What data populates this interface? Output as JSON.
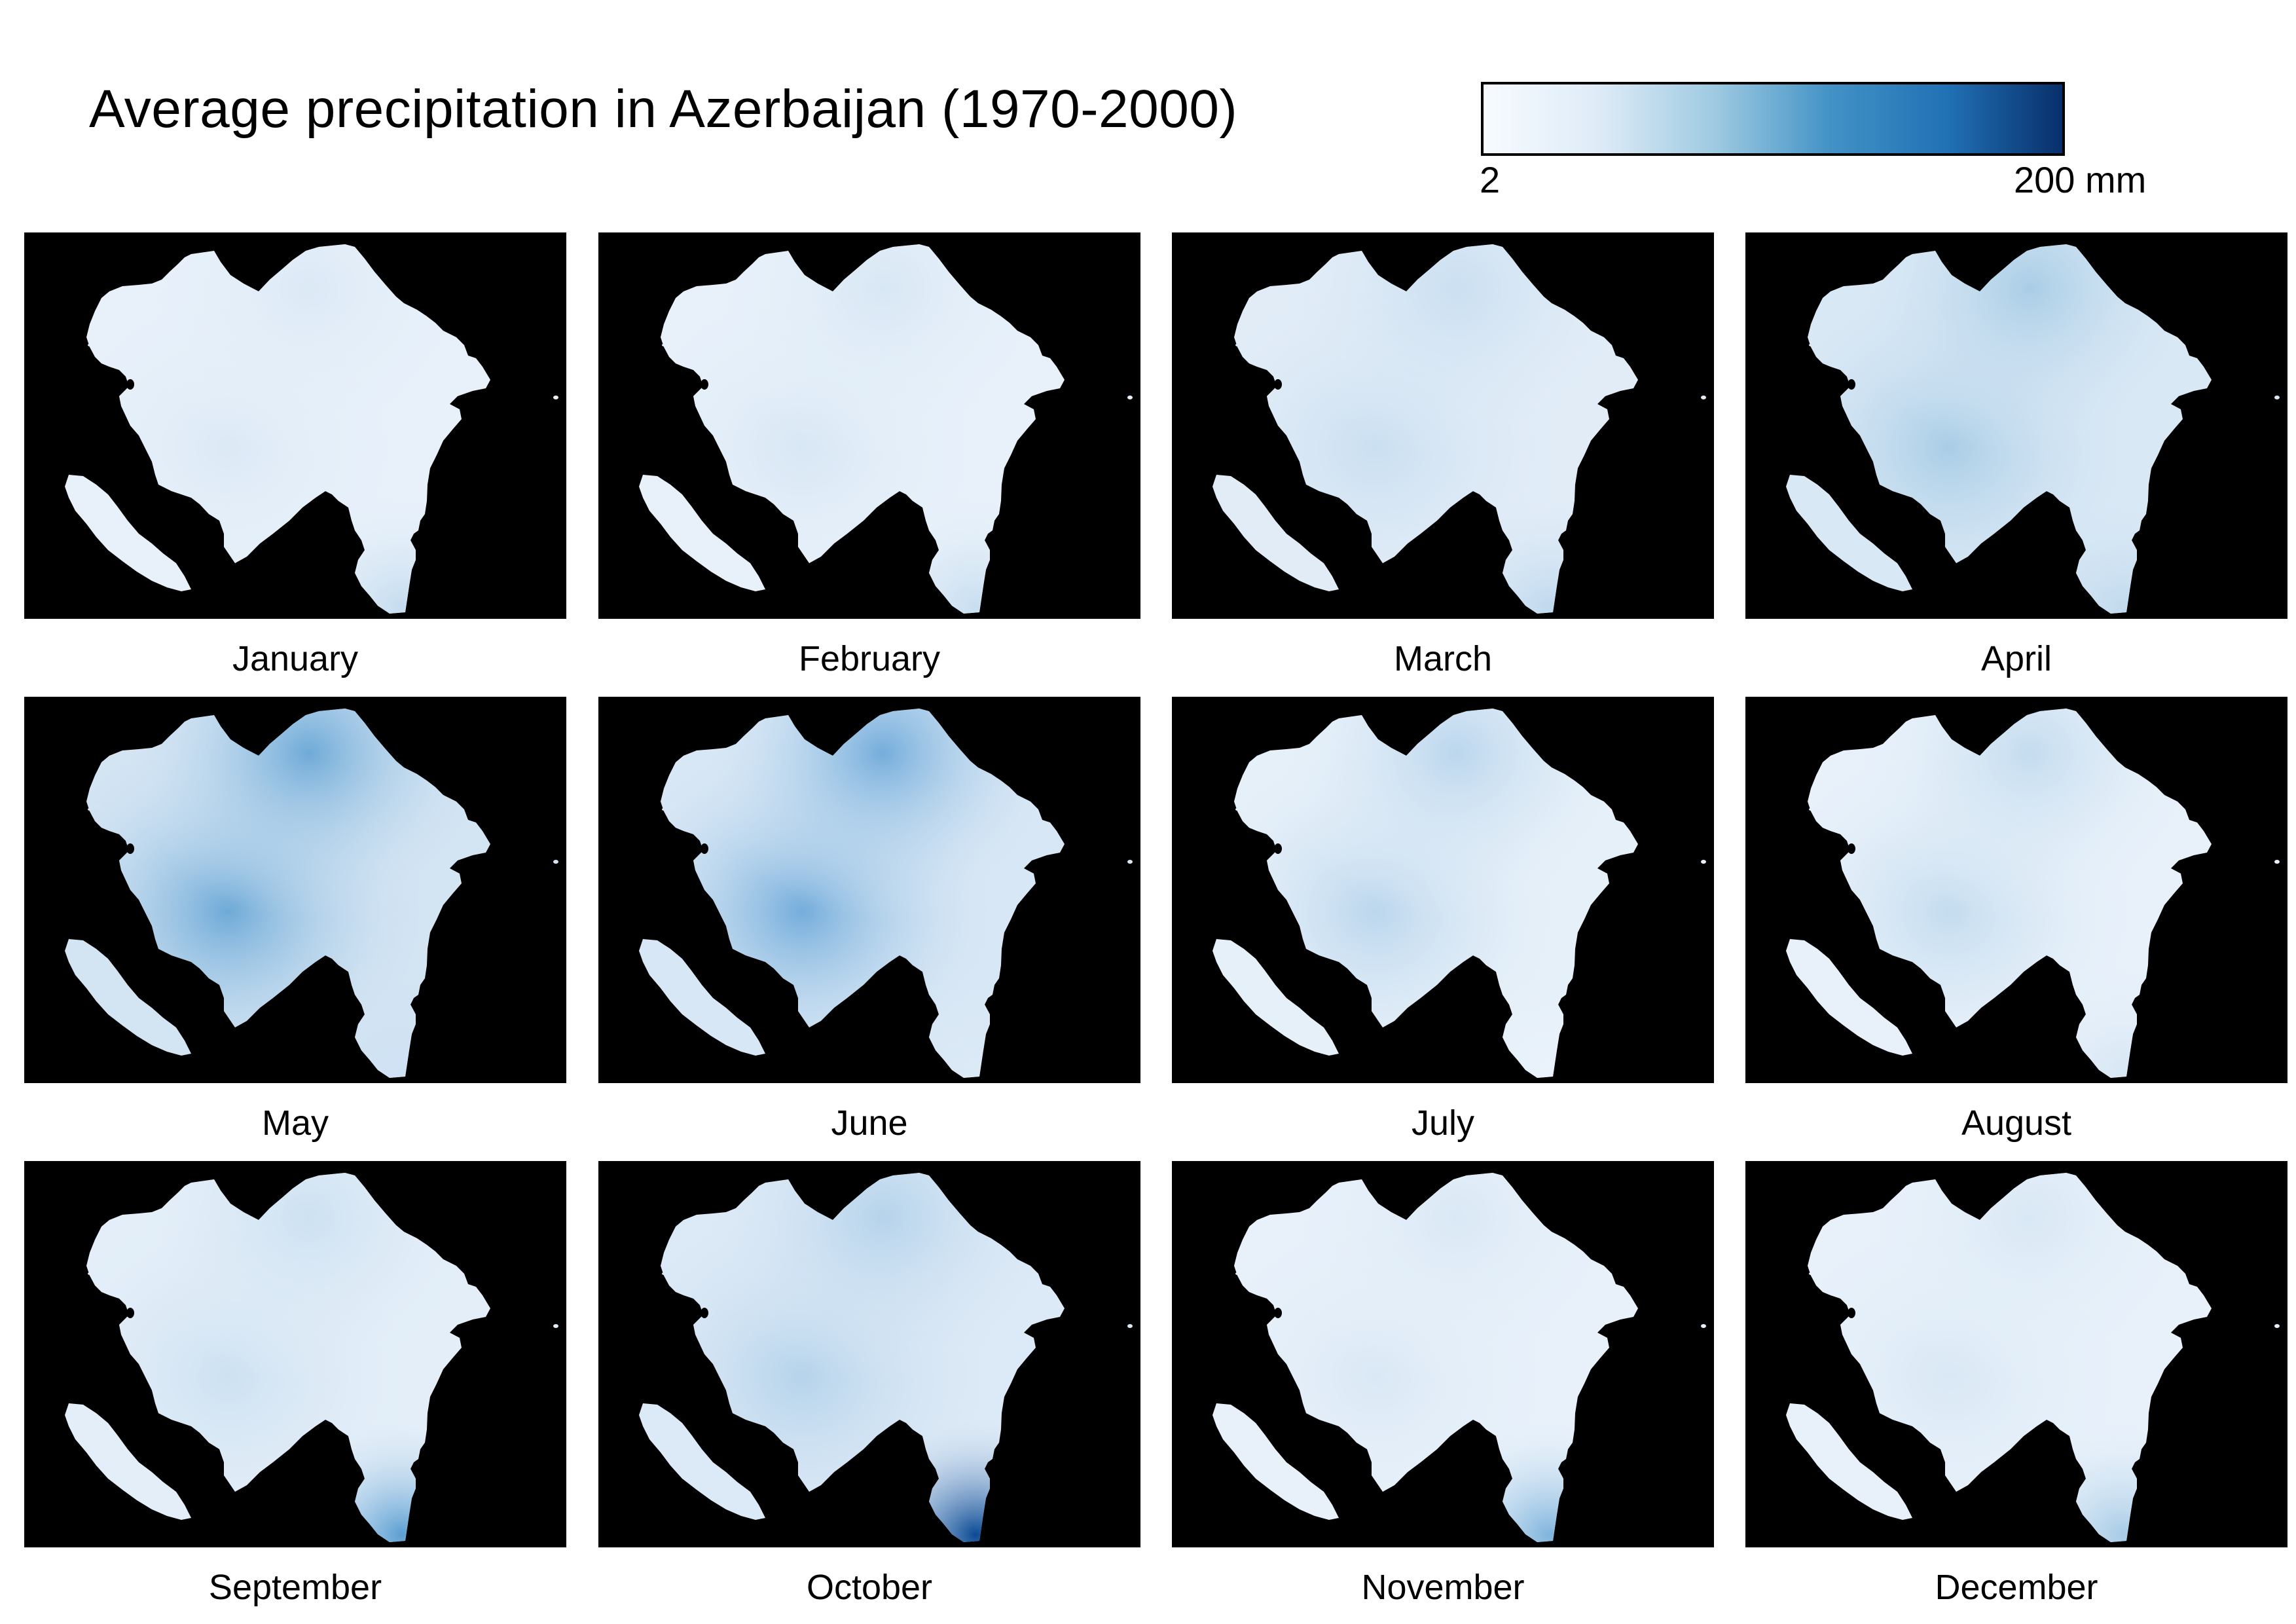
{
  "title": "Average precipitation in Azerbaijan (1970-2000)",
  "legend": {
    "min_label": "2",
    "max_label": "200 mm",
    "colors": [
      "#f7fbff",
      "#deebf7",
      "#9ecae1",
      "#4292c6",
      "#2171b5",
      "#08306b"
    ],
    "panel_background": "#000000"
  },
  "months": [
    {
      "name": "January",
      "mean_color": "#e8f1fa",
      "mountain_color": "#dce9f6",
      "south_color": "#c5dcef",
      "mountain_level": 0.15,
      "south_level": 0.25
    },
    {
      "name": "February",
      "mean_color": "#e8f1fa",
      "mountain_color": "#d8e7f5",
      "south_color": "#c8def0",
      "mountain_level": 0.18,
      "south_level": 0.22
    },
    {
      "name": "March",
      "mean_color": "#e1ecf7",
      "mountain_color": "#cadff1",
      "south_color": "#c0d9ee",
      "mountain_level": 0.28,
      "south_level": 0.28
    },
    {
      "name": "April",
      "mean_color": "#d9e8f5",
      "mountain_color": "#a9cde6",
      "south_color": "#c2daee",
      "mountain_level": 0.45,
      "south_level": 0.25
    },
    {
      "name": "May",
      "mean_color": "#d3e4f3",
      "mountain_color": "#6eaad7",
      "south_color": "#cfe2f3",
      "mountain_level": 0.7,
      "south_level": 0.2
    },
    {
      "name": "June",
      "mean_color": "#d8e7f5",
      "mountain_color": "#74addb",
      "south_color": "#dceaf6",
      "mountain_level": 0.65,
      "south_level": 0.15
    },
    {
      "name": "July",
      "mean_color": "#e6f0f9",
      "mountain_color": "#bbd6ed",
      "south_color": "#eaf3fb",
      "mountain_level": 0.35,
      "south_level": 0.1
    },
    {
      "name": "August",
      "mean_color": "#e8f1fa",
      "mountain_color": "#c4dcef",
      "south_color": "#d8e7f5",
      "mountain_level": 0.3,
      "south_level": 0.18
    },
    {
      "name": "September",
      "mean_color": "#e3eef8",
      "mountain_color": "#cde1f2",
      "south_color": "#5c9fd2",
      "mountain_level": 0.22,
      "south_level": 0.6
    },
    {
      "name": "October",
      "mean_color": "#dce9f6",
      "mountain_color": "#b5d3eb",
      "south_color": "#0b4a94",
      "mountain_level": 0.4,
      "south_level": 0.95
    },
    {
      "name": "November",
      "mean_color": "#e8f1fa",
      "mountain_color": "#dae8f5",
      "south_color": "#7fb4dc",
      "mountain_level": 0.15,
      "south_level": 0.5
    },
    {
      "name": "December",
      "mean_color": "#e8f1fa",
      "mountain_color": "#d9e8f5",
      "south_color": "#a7cbe6",
      "mountain_level": 0.15,
      "south_level": 0.35
    }
  ]
}
